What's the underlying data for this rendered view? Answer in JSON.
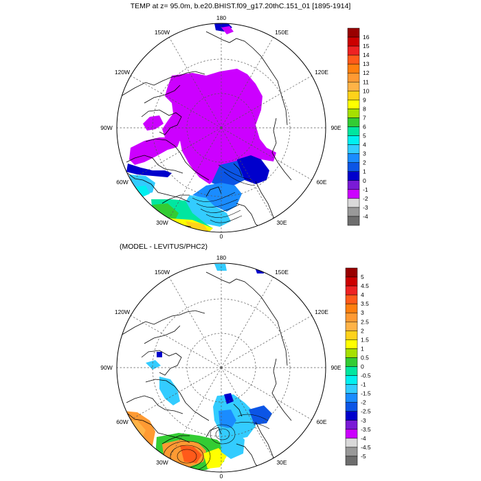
{
  "panels": [
    {
      "id": "top",
      "title": "TEMP at z=  95.0m, b.e20.BHIST.f09_g17.20thC.151_01 [1895-1914]",
      "lon_labels": {
        "n": "180",
        "nw": "150W",
        "ne": "150E",
        "w2": "120W",
        "e2": "120E",
        "w": "90W",
        "e": "90E",
        "w3": "60W",
        "e3": "60E",
        "sw": "30W",
        "se": "30E",
        "s": "0"
      },
      "colorbar": {
        "labels": [
          "16",
          "15",
          "14",
          "13",
          "12",
          "11",
          "10",
          "9",
          "8",
          "7",
          "6",
          "5",
          "4",
          "3",
          "2",
          "1",
          "0",
          "-1",
          "-2",
          "-3",
          "-4"
        ],
        "colors": [
          "#990000",
          "#cc0000",
          "#ee2222",
          "#ff5a1a",
          "#ff7f0e",
          "#ff9a33",
          "#ffb347",
          "#ffd21a",
          "#ffff00",
          "#a6e000",
          "#33cc33",
          "#00e6a0",
          "#00f0f0",
          "#33ccff",
          "#1a8cff",
          "#0b55e6",
          "#0000cc",
          "#7a1ad6",
          "#cc00ff",
          "#d9d9d9",
          "#999999",
          "#6e6e6e"
        ]
      }
    },
    {
      "id": "bottom",
      "title": "(MODEL - LEVITUS/PHC2)",
      "lon_labels": {
        "n": "180",
        "nw": "150W",
        "ne": "150E",
        "w2": "120W",
        "e2": "120E",
        "w": "90W",
        "e": "90E",
        "w3": "60W",
        "e3": "60E",
        "sw": "30W",
        "se": "30E",
        "s": "0"
      },
      "colorbar": {
        "labels": [
          "5",
          "4.5",
          "4",
          "3.5",
          "3",
          "2.5",
          "2",
          "1.5",
          "1",
          "0.5",
          "0",
          "-0.5",
          "-1",
          "-1.5",
          "-2",
          "-2.5",
          "-3",
          "-3.5",
          "-4",
          "-4.5",
          "-5"
        ],
        "colors": [
          "#990000",
          "#cc0000",
          "#ee2222",
          "#ff5a1a",
          "#ff7f0e",
          "#ff9a33",
          "#ffb347",
          "#ffd21a",
          "#ffff00",
          "#a6e000",
          "#33cc33",
          "#00e6a0",
          "#00f0f0",
          "#33ccff",
          "#1a8cff",
          "#0b55e6",
          "#0000cc",
          "#7a1ad6",
          "#cc00ff",
          "#d9d9d9",
          "#999999",
          "#6e6e6e"
        ]
      }
    }
  ],
  "colors": {
    "background": "#ffffff",
    "magenta": "#cc00ff",
    "blue": "#0000cc",
    "cyan": "#33ccff",
    "yellow": "#ffff00",
    "green": "#33cc33",
    "orange": "#ff9a33"
  }
}
